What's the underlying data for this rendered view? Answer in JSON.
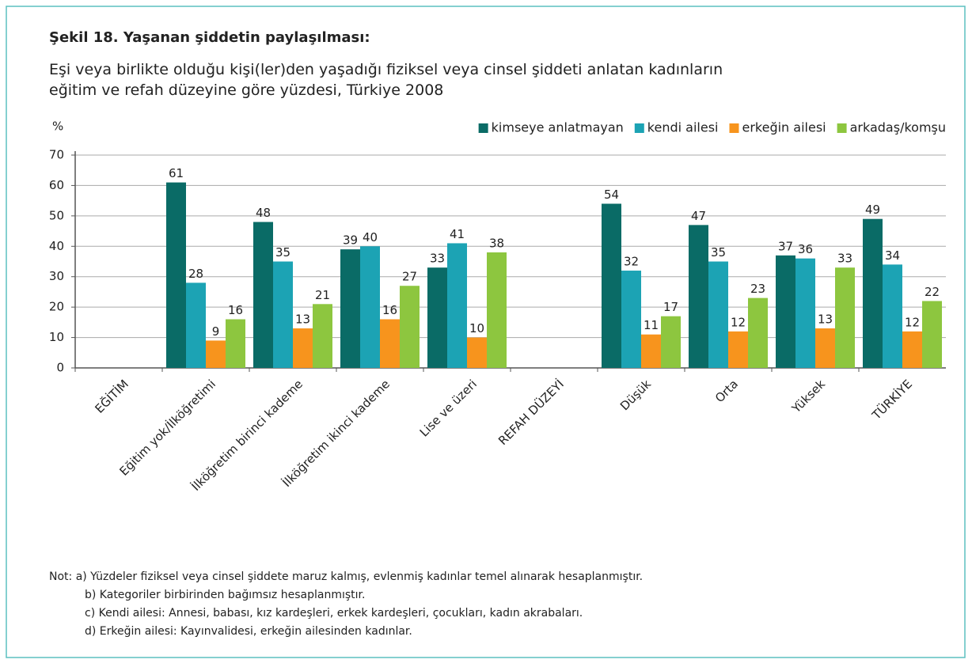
{
  "chart_data": {
    "type": "bar",
    "title": "Şekil 18. Yaşanan şiddetin paylaşılması:",
    "subtitle": "Eşi veya birlikte olduğu kişi(ler)den yaşadığı fiziksel veya cinsel şiddeti anlatan kadınların eğitim ve refah düzeyine göre yüzdesi, Türkiye 2008",
    "y_label": "%",
    "categories": [
      "EĞİTİM",
      "Eğitim yok/İlköğretimi",
      "İlköğretim birinci kademe",
      "İlköğretim ikinci kademe",
      "Lise ve üzeri",
      "REFAH DÜZEYİ",
      "Düşük",
      "Orta",
      "Yüksek",
      "TÜRKİYE"
    ],
    "series": [
      {
        "name": "kimseye anlatmayan",
        "color": "#0a6b66",
        "values": [
          null,
          61,
          48,
          39,
          33,
          null,
          54,
          47,
          37,
          49
        ]
      },
      {
        "name": "kendi ailesi",
        "color": "#1ca3b4",
        "values": [
          null,
          28,
          35,
          40,
          41,
          null,
          32,
          35,
          36,
          34
        ]
      },
      {
        "name": "erkeğin ailesi",
        "color": "#f7941d",
        "values": [
          null,
          9,
          13,
          16,
          10,
          null,
          11,
          12,
          13,
          12
        ]
      },
      {
        "name": "arkadaş/komşu",
        "color": "#8dc63f",
        "values": [
          null,
          16,
          21,
          27,
          38,
          null,
          17,
          23,
          33,
          22
        ]
      }
    ],
    "ylim": [
      0,
      70
    ],
    "yticks": [
      0,
      10,
      20,
      30,
      40,
      50,
      60,
      70
    ],
    "grid": true,
    "legend": "top-right",
    "notes": [
      "Not:  a) Yüzdeler fiziksel veya cinsel şiddete maruz kalmış, evlenmiş kadınlar temel alınarak hesaplanmıştır.",
      "b) Kategoriler birbirinden bağımsız hesaplanmıştır.",
      "c) Kendi ailesi:  Annesi, babası, kız kardeşleri, erkek kardeşleri, çocukları, kadın akrabaları.",
      "d) Erkeğin ailesi: Kayınvalidesi, erkeğin ailesinden kadınlar."
    ]
  }
}
